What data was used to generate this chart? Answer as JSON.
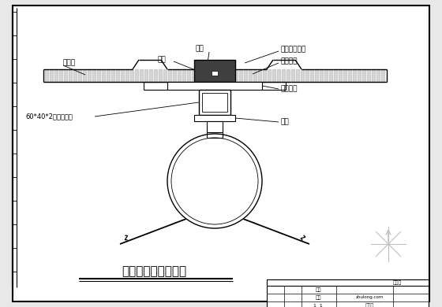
{
  "bg_color": "#e8e8e8",
  "drawing_bg": "#ffffff",
  "line_color": "#000000",
  "title": "彩钢板顺坡连接节点",
  "labels": {
    "cai_gang_ban": "彩钢板",
    "gang_ban": "钢板",
    "gang_ding": "铆钉",
    "zi_gong_luo_ding": "自攻自钻螺钉",
    "mi_feng_gui_jiao": "密封硅胶",
    "nei_chen_gang_ban": "内衬钢板",
    "zhi_tuo": "支托",
    "rect_tube": "60*40*2矩形檩条管"
  }
}
